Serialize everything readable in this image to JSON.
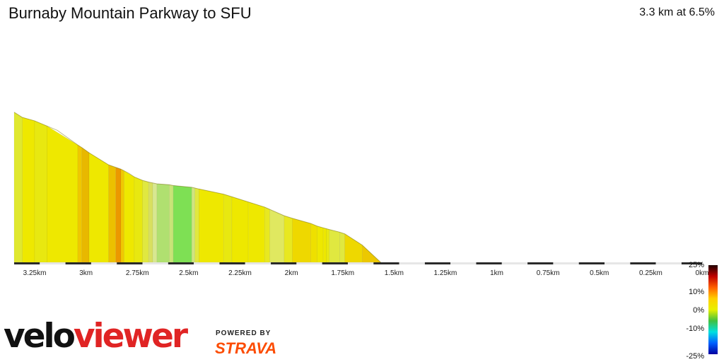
{
  "header": {
    "title": "Burnaby Mountain Parkway to SFU",
    "summary": "3.3 km at 6.5%"
  },
  "branding": {
    "logo_part1": "velo",
    "logo_part2": "viewer",
    "powered_by": "POWERED BY",
    "strava": "STRAVA"
  },
  "gradient_scale": {
    "labels": [
      "25%",
      "10%",
      "0%",
      "-10%",
      "-25%"
    ],
    "colors": [
      "#200000",
      "#c00000",
      "#ff6000",
      "#ffd000",
      "#e8f000",
      "#40c040",
      "#00e0e0",
      "#0060ff",
      "#0000a0"
    ]
  },
  "chart_data": {
    "type": "area",
    "title": "Burnaby Mountain Parkway to SFU",
    "xlabel": "",
    "ylabel": "",
    "x_direction": "reversed",
    "xlim": [
      0,
      3.35
    ],
    "x_ticks": [
      {
        "value": 3.25,
        "label": "3.25km"
      },
      {
        "value": 3.0,
        "label": "3km"
      },
      {
        "value": 2.75,
        "label": "2.75km"
      },
      {
        "value": 2.5,
        "label": "2.5km"
      },
      {
        "value": 2.25,
        "label": "2.25km"
      },
      {
        "value": 2.0,
        "label": "2km"
      },
      {
        "value": 1.75,
        "label": "1.75km"
      },
      {
        "value": 1.5,
        "label": "1.5km"
      },
      {
        "value": 1.25,
        "label": "1.25km"
      },
      {
        "value": 1.0,
        "label": "1km"
      },
      {
        "value": 0.75,
        "label": "0.75km"
      },
      {
        "value": 0.5,
        "label": "0.5km"
      },
      {
        "value": 0.25,
        "label": "0.25km"
      },
      {
        "value": 0.0,
        "label": "0km"
      }
    ],
    "segments": [
      {
        "from_km": 3.35,
        "to_km": 3.31,
        "color": "#e0e830"
      },
      {
        "from_km": 3.31,
        "to_km": 3.25,
        "color": "#eee800"
      },
      {
        "from_km": 3.25,
        "to_km": 3.19,
        "color": "#e8e810"
      },
      {
        "from_km": 3.19,
        "to_km": 3.04,
        "color": "#eee800"
      },
      {
        "from_km": 3.04,
        "to_km": 3.02,
        "color": "#f0c800"
      },
      {
        "from_km": 3.02,
        "to_km": 2.985,
        "color": "#e8b800"
      },
      {
        "from_km": 2.985,
        "to_km": 2.89,
        "color": "#eee800"
      },
      {
        "from_km": 2.89,
        "to_km": 2.855,
        "color": "#ecc000"
      },
      {
        "from_km": 2.855,
        "to_km": 2.83,
        "color": "#ec9800"
      },
      {
        "from_km": 2.83,
        "to_km": 2.815,
        "color": "#f0c800"
      },
      {
        "from_km": 2.815,
        "to_km": 2.765,
        "color": "#eee800"
      },
      {
        "from_km": 2.765,
        "to_km": 2.725,
        "color": "#e8e810"
      },
      {
        "from_km": 2.725,
        "to_km": 2.695,
        "color": "#e0e840"
      },
      {
        "from_km": 2.695,
        "to_km": 2.675,
        "color": "#d8e060"
      },
      {
        "from_km": 2.675,
        "to_km": 2.655,
        "color": "#d8e890"
      },
      {
        "from_km": 2.655,
        "to_km": 2.595,
        "color": "#b0e070"
      },
      {
        "from_km": 2.595,
        "to_km": 2.575,
        "color": "#c8e478"
      },
      {
        "from_km": 2.575,
        "to_km": 2.485,
        "color": "#7ee054"
      },
      {
        "from_km": 2.485,
        "to_km": 2.47,
        "color": "#d0e480"
      },
      {
        "from_km": 2.47,
        "to_km": 2.45,
        "color": "#e0e840"
      },
      {
        "from_km": 2.45,
        "to_km": 2.33,
        "color": "#eee800"
      },
      {
        "from_km": 2.33,
        "to_km": 2.29,
        "color": "#e8e810"
      },
      {
        "from_km": 2.29,
        "to_km": 2.21,
        "color": "#eee800"
      },
      {
        "from_km": 2.21,
        "to_km": 2.13,
        "color": "#eee800"
      },
      {
        "from_km": 2.13,
        "to_km": 2.105,
        "color": "#e8e820"
      },
      {
        "from_km": 2.105,
        "to_km": 2.035,
        "color": "#e0e860"
      },
      {
        "from_km": 2.035,
        "to_km": 1.995,
        "color": "#e8e820"
      },
      {
        "from_km": 1.995,
        "to_km": 1.905,
        "color": "#eed800"
      },
      {
        "from_km": 1.905,
        "to_km": 1.875,
        "color": "#eee000"
      },
      {
        "from_km": 1.875,
        "to_km": 1.845,
        "color": "#eee800"
      },
      {
        "from_km": 1.845,
        "to_km": 1.83,
        "color": "#eee800"
      },
      {
        "from_km": 1.83,
        "to_km": 1.815,
        "color": "#e8e810"
      },
      {
        "from_km": 1.815,
        "to_km": 1.765,
        "color": "#e0e840"
      },
      {
        "from_km": 1.765,
        "to_km": 1.74,
        "color": "#e0e840"
      },
      {
        "from_km": 1.74,
        "to_km": 1.655,
        "color": "#eed800"
      },
      {
        "from_km": 1.655,
        "to_km": 1.565,
        "color": "#ecc800"
      }
    ],
    "elevation_points": [
      {
        "km": 3.35,
        "elev": 0.87
      },
      {
        "km": 3.31,
        "elev": 0.84
      },
      {
        "km": 3.25,
        "elev": 0.82
      },
      {
        "km": 3.19,
        "elev": 0.79
      },
      {
        "km": 3.14,
        "elev": 0.765
      },
      {
        "km": 3.04,
        "elev": 0.68
      },
      {
        "km": 3.02,
        "elev": 0.665
      },
      {
        "km": 2.985,
        "elev": 0.635
      },
      {
        "km": 2.89,
        "elev": 0.565
      },
      {
        "km": 2.83,
        "elev": 0.54
      },
      {
        "km": 2.79,
        "elev": 0.515
      },
      {
        "km": 2.765,
        "elev": 0.495
      },
      {
        "km": 2.725,
        "elev": 0.475
      },
      {
        "km": 2.695,
        "elev": 0.465
      },
      {
        "km": 2.655,
        "elev": 0.455
      },
      {
        "km": 2.595,
        "elev": 0.45
      },
      {
        "km": 2.575,
        "elev": 0.445
      },
      {
        "km": 2.485,
        "elev": 0.435
      },
      {
        "km": 2.45,
        "elev": 0.425
      },
      {
        "km": 2.33,
        "elev": 0.395
      },
      {
        "km": 2.29,
        "elev": 0.38
      },
      {
        "km": 2.21,
        "elev": 0.35
      },
      {
        "km": 2.13,
        "elev": 0.32
      },
      {
        "km": 2.035,
        "elev": 0.27
      },
      {
        "km": 1.995,
        "elev": 0.255
      },
      {
        "km": 1.905,
        "elev": 0.225
      },
      {
        "km": 1.875,
        "elev": 0.21
      },
      {
        "km": 1.845,
        "elev": 0.2
      },
      {
        "km": 1.815,
        "elev": 0.19
      },
      {
        "km": 1.765,
        "elev": 0.175
      },
      {
        "km": 1.74,
        "elev": 0.165
      },
      {
        "km": 1.655,
        "elev": 0.1
      },
      {
        "km": 1.565,
        "elev": 0.0
      }
    ]
  }
}
